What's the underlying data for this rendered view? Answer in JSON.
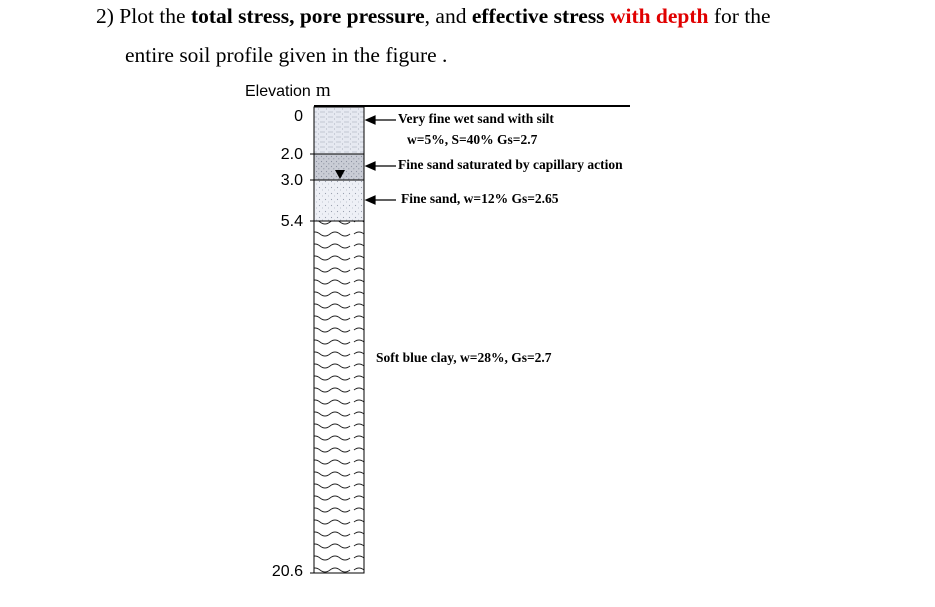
{
  "question": {
    "number": "2)",
    "parts": [
      {
        "text": "Plot the ",
        "style": "normal"
      },
      {
        "text": "total stress, pore pressure",
        "style": "bold"
      },
      {
        "text": ", and ",
        "style": "normal"
      },
      {
        "text": "effective stress",
        "style": "bold"
      },
      {
        "text": "with depth",
        "style": "red"
      },
      {
        "text": "for the",
        "style": "normal"
      }
    ],
    "line2": "entire soil profile given in the figure ."
  },
  "figure": {
    "elevation_title": "Elevation",
    "elevation_unit": "m",
    "elevations": [
      "0",
      "2.0",
      "3.0",
      "5.4",
      "20.6"
    ],
    "layers": [
      {
        "label_line1": "Very fine wet sand with silt",
        "label_line2": "w=5%, S=40% Gs=2.7"
      },
      {
        "label_line1": "Fine sand saturated by capillary action"
      },
      {
        "label_line1": "Fine sand, w=12% Gs=2.65"
      },
      {
        "label_line1": "Soft blue clay, w=28%, Gs=2.7"
      }
    ],
    "colors": {
      "text_red": "#e00000",
      "sand_fill": "#eef0f6",
      "capillary_fill": "#c8cbd3",
      "line": "#000000"
    }
  }
}
